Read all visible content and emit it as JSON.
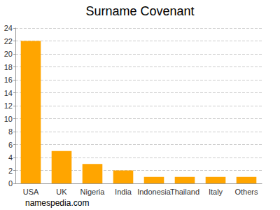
{
  "chart_data": {
    "type": "bar",
    "title": "Surname Covenant",
    "categories": [
      "USA",
      "UK",
      "Nigeria",
      "India",
      "Indonesia",
      "Thailand",
      "Italy",
      "Others"
    ],
    "values": [
      22,
      5,
      3,
      2,
      1,
      1,
      1,
      1
    ],
    "color": "#ffa500",
    "ylim": [
      0,
      24
    ],
    "yticks": [
      0,
      2,
      4,
      6,
      8,
      10,
      12,
      14,
      16,
      18,
      20,
      22,
      24
    ],
    "grid": true,
    "annotations": [
      "namespedia.com"
    ]
  }
}
